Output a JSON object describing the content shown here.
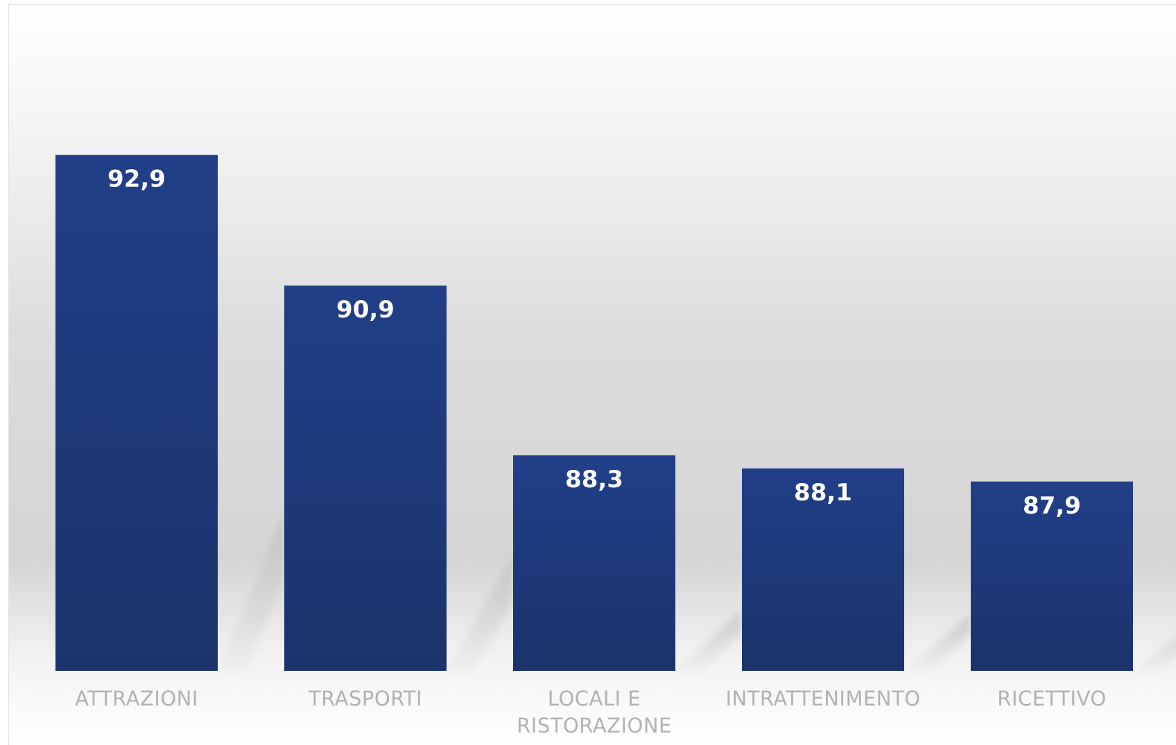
{
  "chart_data": {
    "type": "bar",
    "title": "",
    "xlabel": "",
    "ylabel": "",
    "categories": [
      "ATTRAZIONI",
      "TRASPORTI",
      "LOCALI E RISTORAZIONE",
      "INTRATTENIMENTO",
      "RICETTIVO"
    ],
    "category_lines": [
      [
        "ATTRAZIONI"
      ],
      [
        "TRASPORTI"
      ],
      [
        "LOCALI E",
        "RISTORAZIONE"
      ],
      [
        "INTRATTENIMENTO"
      ],
      [
        "RICETTIVO"
      ]
    ],
    "values": [
      92.9,
      90.9,
      88.3,
      88.1,
      87.9
    ],
    "value_labels": [
      "92,9",
      "90,9",
      "88,3",
      "88,1",
      "87,9"
    ],
    "ylim": [
      85,
      94
    ],
    "grid": false,
    "legend": "none",
    "colors": {
      "bar_top": "#213f88",
      "bar_bottom": "#1b336b",
      "value_text": "#ffffff",
      "category_text": "#b2b2b2",
      "background_mid": "#d9d9d9",
      "shadow": "#a9a9a9"
    }
  }
}
